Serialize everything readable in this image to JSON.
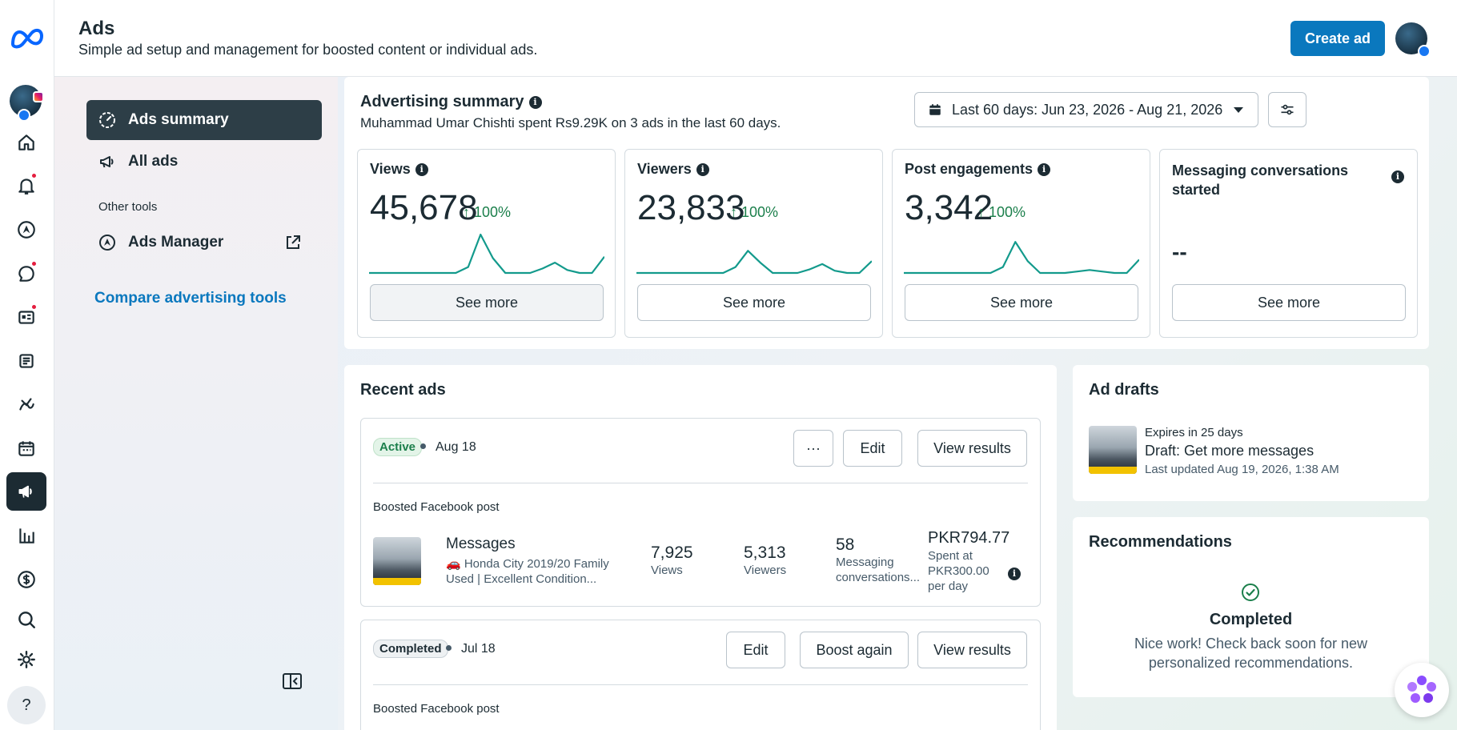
{
  "header": {
    "title": "Ads",
    "subtitle": "Simple ad setup and management for boosted content or individual ads.",
    "create_label": "Create ad"
  },
  "rail": {
    "icons": [
      "meta-logo",
      "account-avatar",
      "home-icon",
      "notifications-icon",
      "ads-manager-icon",
      "messages-icon",
      "content-icon",
      "posts-icon",
      "insights-icon",
      "calendar-icon",
      "ads-icon",
      "analytics-icon",
      "monetization-icon",
      "search-icon",
      "settings-icon",
      "help-icon"
    ],
    "help_label": "?"
  },
  "side": {
    "items": [
      {
        "label": "Ads summary",
        "icon": "gauge-icon"
      },
      {
        "label": "All ads",
        "icon": "megaphone-icon"
      }
    ],
    "other_tools_label": "Other tools",
    "ads_manager_label": "Ads Manager",
    "compare_label": "Compare advertising tools"
  },
  "summary": {
    "title": "Advertising summary",
    "subtitle": "Muhammad Umar Chishti spent Rs9.29K on 3 ads in the last 60 days.",
    "date_range": "Last 60 days: Jun 23, 2026 - Aug 21, 2026",
    "metrics": [
      {
        "name": "Views",
        "value": "45,678",
        "delta": "↑ 100%",
        "see_more": "See more",
        "spark": [
          0,
          0,
          0,
          0,
          0,
          0,
          0,
          0,
          8,
          52,
          20,
          0,
          0,
          0,
          6,
          14,
          4,
          0,
          0,
          22
        ]
      },
      {
        "name": "Viewers",
        "value": "23,833",
        "delta": "↑ 100%",
        "see_more": "See more",
        "spark": [
          0,
          0,
          0,
          0,
          0,
          0,
          0,
          0,
          8,
          30,
          14,
          0,
          0,
          0,
          5,
          12,
          3,
          0,
          0,
          16
        ]
      },
      {
        "name": "Post engagements",
        "value": "3,342",
        "delta": "↑ 100%",
        "see_more": "See more",
        "spark": [
          0,
          0,
          0,
          0,
          0,
          0,
          0,
          0,
          8,
          42,
          16,
          0,
          0,
          0,
          2,
          4,
          2,
          0,
          0,
          18
        ]
      },
      {
        "name": "Messaging conversations started",
        "value": "--",
        "delta": "",
        "see_more": "See more"
      }
    ]
  },
  "recent": {
    "title": "Recent ads",
    "ads": [
      {
        "status": "Active",
        "date": "Aug 18",
        "more_label": "···",
        "edit_label": "Edit",
        "results_label": "View results",
        "type": "Boosted Facebook post",
        "name": "Messages",
        "description": "🚗 Honda City 2019/20 Family Used | Excellent Condition...",
        "stats": [
          {
            "value": "7,925",
            "label": "Views"
          },
          {
            "value": "5,313",
            "label": "Viewers"
          },
          {
            "value": "58",
            "label": "Messaging conversations..."
          }
        ],
        "spent": "PKR794.77",
        "spent_label": "Spent at PKR300.00 per day"
      },
      {
        "status": "Completed",
        "date": "Jul 18",
        "edit_label": "Edit",
        "boost_label": "Boost again",
        "results_label": "View results",
        "type": "Boosted Facebook post"
      }
    ]
  },
  "drafts": {
    "title": "Ad drafts",
    "expires": "Expires in 25 days",
    "name": "Draft: Get more messages",
    "updated": "Last updated Aug 19, 2026, 1:38 AM"
  },
  "recommendations": {
    "title": "Recommendations",
    "status": "Completed",
    "text": "Nice work! Check back soon for new personalized recommendations."
  },
  "colors": {
    "accent": "#0a78be",
    "positive": "#1b7f4b",
    "spark_line": "#139a8c",
    "text": "#1c2b33"
  }
}
